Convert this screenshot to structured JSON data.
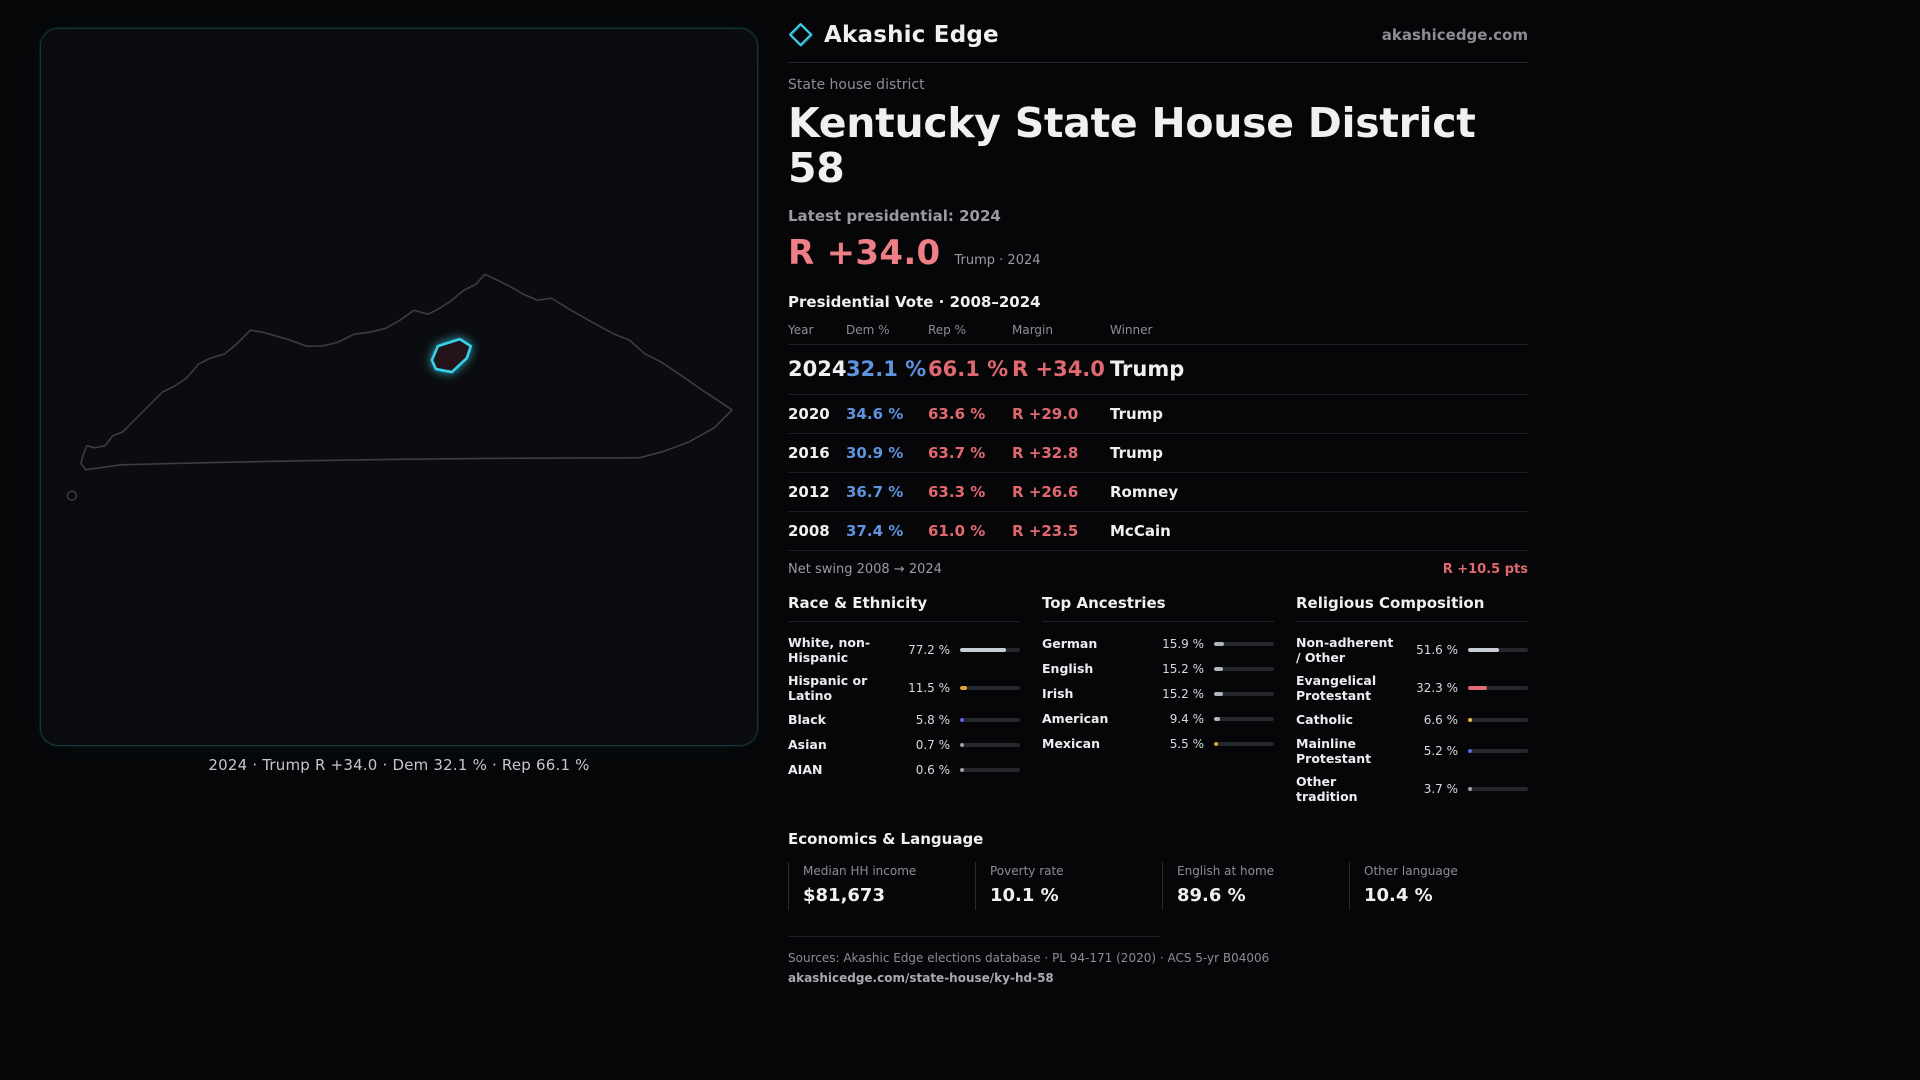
{
  "colors": {
    "accent_cyan": "#36d3e8",
    "dem_blue": "#5f93dd",
    "rep_red": "#e0696f",
    "headline_salmon": "#ef7f86",
    "bar_gray": "#c9ced6",
    "bar_orange": "#e0a43c",
    "bar_indigo": "#5b67e0",
    "bar_yellow": "#e8c33d"
  },
  "brand": {
    "name": "Akashic Edge",
    "site": "akashicedge.com"
  },
  "map": {
    "caption": "2024 · Trump R +34.0 · Dem 32.1 % · Rep 66.1 %"
  },
  "header": {
    "kicker": "State house district",
    "title": "Kentucky State House District 58",
    "latest_label": "Latest presidential: 2024",
    "headline_margin": "R +34.0",
    "headline_context": "Trump · 2024"
  },
  "vote_table": {
    "title": "Presidential Vote · 2008–2024",
    "columns": [
      "Year",
      "Dem %",
      "Rep %",
      "Margin",
      "Winner"
    ],
    "rows": [
      {
        "year": "2024",
        "dem": "32.1 %",
        "rep": "66.1 %",
        "margin": "R +34.0",
        "winner": "Trump"
      },
      {
        "year": "2020",
        "dem": "34.6 %",
        "rep": "63.6 %",
        "margin": "R +29.0",
        "winner": "Trump"
      },
      {
        "year": "2016",
        "dem": "30.9 %",
        "rep": "63.7 %",
        "margin": "R +32.8",
        "winner": "Trump"
      },
      {
        "year": "2012",
        "dem": "36.7 %",
        "rep": "63.3 %",
        "margin": "R +26.6",
        "winner": "Romney"
      },
      {
        "year": "2008",
        "dem": "37.4 %",
        "rep": "61.0 %",
        "margin": "R +23.5",
        "winner": "McCain"
      }
    ],
    "net_swing_label": "Net swing 2008 → 2024",
    "net_swing_value": "R +10.5 pts"
  },
  "demographics": {
    "race": {
      "title": "Race & Ethnicity",
      "items": [
        {
          "label": "White, non-Hispanic",
          "value": "77.2 %",
          "pct": 77.2,
          "color": "#c9ced6"
        },
        {
          "label": "Hispanic or Latino",
          "value": "11.5 %",
          "pct": 11.5,
          "color": "#e0a43c"
        },
        {
          "label": "Black",
          "value": "5.8 %",
          "pct": 5.8,
          "color": "#5b67e0"
        },
        {
          "label": "Asian",
          "value": "0.7 %",
          "pct": 0.7,
          "color": "#9aa3ad"
        },
        {
          "label": "AIAN",
          "value": "0.6 %",
          "pct": 0.6,
          "color": "#9aa3ad"
        }
      ]
    },
    "ancestry": {
      "title": "Top Ancestries",
      "items": [
        {
          "label": "German",
          "value": "15.9 %",
          "pct": 15.9,
          "color": "#aeb6c0"
        },
        {
          "label": "English",
          "value": "15.2 %",
          "pct": 15.2,
          "color": "#aeb6c0"
        },
        {
          "label": "Irish",
          "value": "15.2 %",
          "pct": 15.2,
          "color": "#aeb6c0"
        },
        {
          "label": "American",
          "value": "9.4 %",
          "pct": 9.4,
          "color": "#aeb6c0"
        },
        {
          "label": "Mexican",
          "value": "5.5 %",
          "pct": 5.5,
          "color": "#e0a43c"
        }
      ]
    },
    "religion": {
      "title": "Religious Composition",
      "items": [
        {
          "label": "Non-adherent / Other",
          "value": "51.6 %",
          "pct": 51.6,
          "color": "#c9ced6"
        },
        {
          "label": "Evangelical Protestant",
          "value": "32.3 %",
          "pct": 32.3,
          "color": "#e06c75"
        },
        {
          "label": "Catholic",
          "value": "6.6 %",
          "pct": 6.6,
          "color": "#e8c33d"
        },
        {
          "label": "Mainline Protestant",
          "value": "5.2 %",
          "pct": 5.2,
          "color": "#5b67e0"
        },
        {
          "label": "Other tradition",
          "value": "3.7 %",
          "pct": 3.7,
          "color": "#9aa3ad"
        }
      ]
    }
  },
  "economics": {
    "title": "Economics & Language",
    "stats": [
      {
        "label": "Median HH income",
        "value": "$81,673"
      },
      {
        "label": "Poverty rate",
        "value": "10.1 %"
      },
      {
        "label": "English at home",
        "value": "89.6 %"
      },
      {
        "label": "Other language",
        "value": "10.4 %"
      }
    ]
  },
  "footer": {
    "sources": "Sources: Akashic Edge elections database · PL 94-171 (2020) · ACS 5-yr B04006",
    "url": "akashicedge.com/state-house/ky-hd-58"
  }
}
